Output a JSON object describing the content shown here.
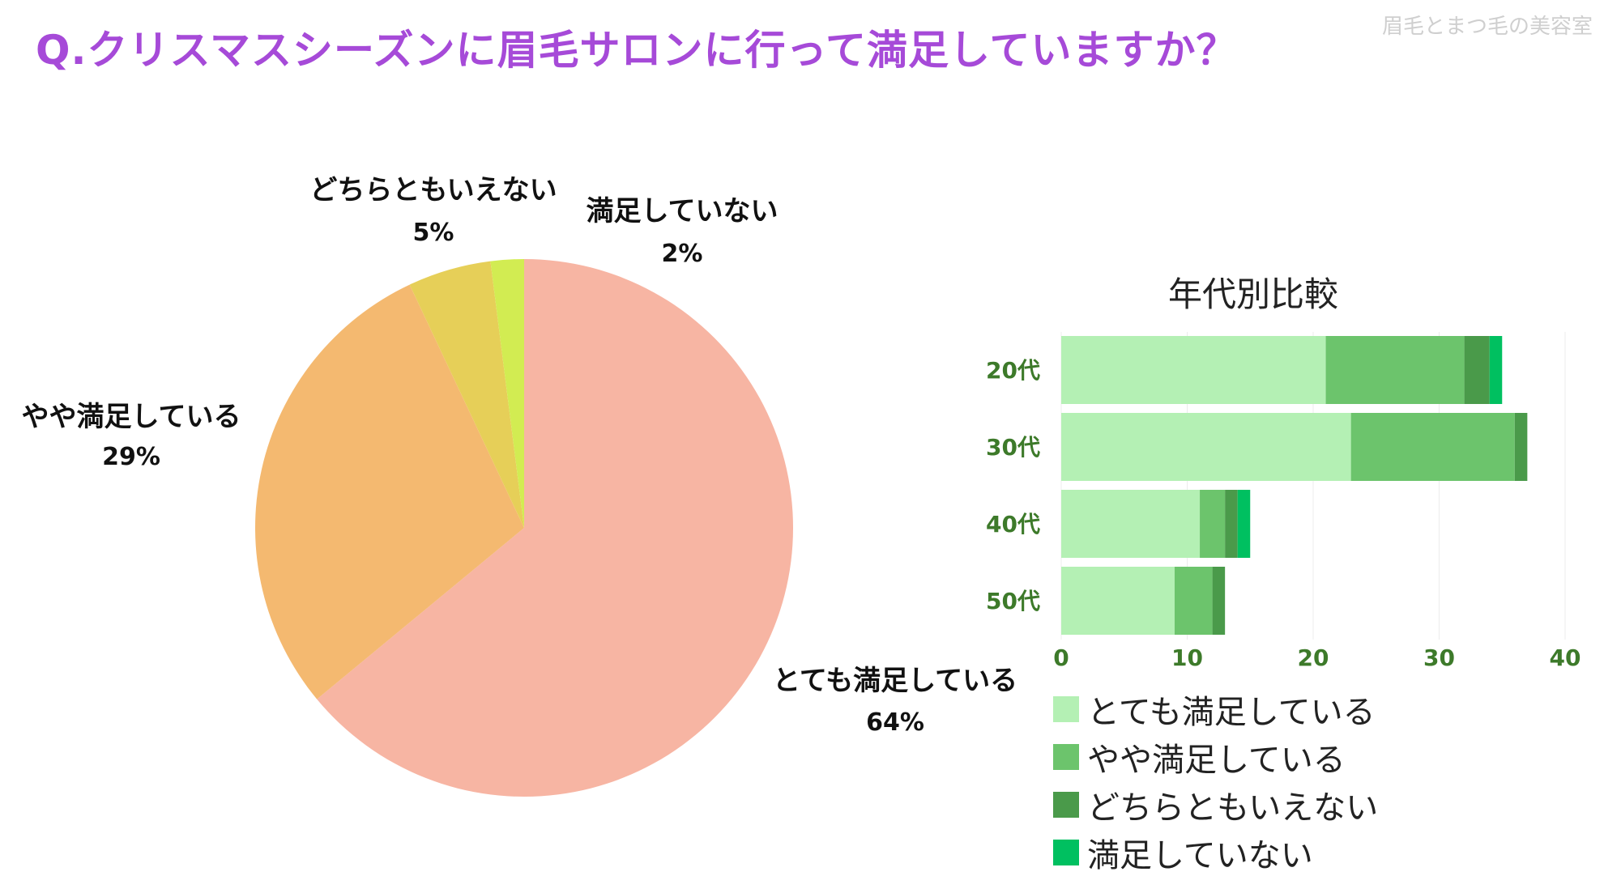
{
  "header": {
    "title": "Q.クリスマスシーズンに眉毛サロンに行って満足していますか？",
    "watermark": "眉毛とまつ毛の美容室"
  },
  "chart_data": [
    {
      "type": "pie",
      "slices": [
        {
          "label": "とても満足している",
          "value": 64,
          "value_label": "64%",
          "color": "#f7b5a3"
        },
        {
          "label": "やや満足している",
          "value": 29,
          "value_label": "29%",
          "color": "#f4b970"
        },
        {
          "label": "どちらともいえない",
          "value": 5,
          "value_label": "5%",
          "color": "#e6cf58"
        },
        {
          "label": "満足していない",
          "value": 2,
          "value_label": "2%",
          "color": "#d2ec52"
        }
      ]
    },
    {
      "type": "bar",
      "orientation": "horizontal",
      "stacked": true,
      "title": "年代別比較",
      "categories": [
        "20代",
        "30代",
        "40代",
        "50代"
      ],
      "series": [
        {
          "name": "とても満足している",
          "values": [
            21,
            23,
            11,
            9
          ],
          "color": "#b4f0b4"
        },
        {
          "name": "やや満足している",
          "values": [
            11,
            13,
            2,
            3
          ],
          "color": "#6cc46c"
        },
        {
          "name": "どちらともいえない",
          "values": [
            2,
            1,
            1,
            1
          ],
          "color": "#4a9a4a"
        },
        {
          "name": "満足していない",
          "values": [
            1,
            0,
            1,
            0
          ],
          "color": "#00c060"
        }
      ],
      "xlim": [
        0,
        40
      ],
      "xticks": [
        0,
        10,
        20,
        30,
        40
      ],
      "legend_position": "bottom",
      "grid": true
    }
  ]
}
